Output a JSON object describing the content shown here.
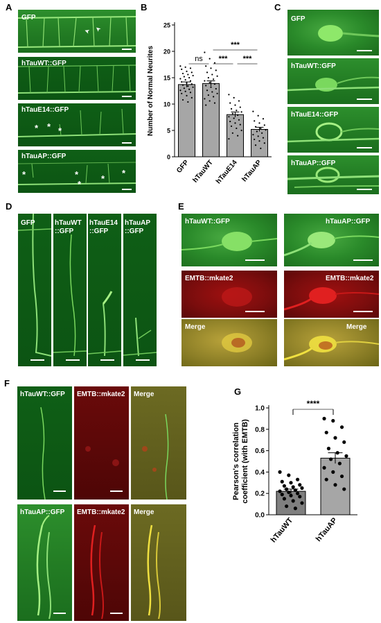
{
  "panels": {
    "A": {
      "label": "A",
      "images": [
        {
          "text": "GFP",
          "markers": [
            "➤",
            "➤"
          ]
        },
        {
          "text": "hTauWT::GFP"
        },
        {
          "text": "hTauE14::GFP",
          "markers": [
            "*",
            "*",
            "*"
          ]
        },
        {
          "text": "hTauAP::GFP",
          "markers": [
            "*",
            "*",
            "*",
            "*",
            "*"
          ]
        }
      ]
    },
    "B": {
      "label": "B",
      "significance": [
        "ns",
        "***",
        "***",
        "***"
      ]
    },
    "C": {
      "label": "C",
      "images": [
        {
          "text": "GFP"
        },
        {
          "text": "hTauWT::GFP"
        },
        {
          "text": "hTauE14::GFP"
        },
        {
          "text": "hTauAP::GFP"
        }
      ]
    },
    "D": {
      "label": "D",
      "images": [
        {
          "line1": "GFP",
          "line2": ""
        },
        {
          "line1": "hTauWT",
          "line2": "::GFP"
        },
        {
          "line1": "hTauE14",
          "line2": "::GFP"
        },
        {
          "line1": "hTauAP",
          "line2": "::GFP"
        }
      ]
    },
    "E": {
      "label": "E",
      "images": [
        {
          "text": "hTauWT::GFP"
        },
        {
          "text": "hTauAP::GFP"
        },
        {
          "text": "EMTB::mkate2"
        },
        {
          "text": "EMTB::mkate2"
        },
        {
          "text": "Merge"
        },
        {
          "text": "Merge"
        }
      ]
    },
    "F": {
      "label": "F",
      "images": [
        {
          "text": "hTauWT::GFP"
        },
        {
          "text": "EMTB::mkate2"
        },
        {
          "text": "Merge"
        },
        {
          "text": "hTauAP::GFP"
        },
        {
          "text": "EMTB::mkate2"
        },
        {
          "text": "Merge"
        }
      ]
    },
    "G": {
      "label": "G",
      "significance": "****"
    }
  },
  "chart_data": [
    {
      "type": "bar",
      "panel": "B",
      "categories": [
        "GFP",
        "hTauWT",
        "hTauE14",
        "hTauAP"
      ],
      "values": [
        13.7,
        13.9,
        8.0,
        5.2
      ],
      "errors": [
        0.5,
        0.5,
        0.5,
        0.4
      ],
      "ylabel": "Number of Normal Neurites",
      "ylim": [
        0,
        25
      ],
      "yticks": [
        0,
        5,
        10,
        15,
        20,
        25
      ],
      "bar_color": "#a6a6a6",
      "points": [
        [
          17.2,
          17.0,
          16.8,
          16.6,
          16.2,
          16.0,
          15.8,
          15.6,
          15.4,
          15.2,
          15.0,
          14.8,
          14.6,
          14.4,
          14.2,
          14.0,
          13.8,
          13.6,
          13.4,
          13.2,
          13.0,
          12.8,
          12.6,
          12.4,
          12.2,
          12.0,
          11.6,
          11.2,
          10.8,
          10.4
        ],
        [
          19.8,
          18.6,
          17.8,
          17.2,
          16.8,
          16.4,
          16.0,
          15.6,
          15.3,
          15.0,
          14.7,
          14.4,
          14.1,
          13.8,
          13.5,
          13.2,
          12.9,
          12.6,
          12.3,
          12.0,
          11.7,
          11.4,
          11.0,
          10.6,
          10.2,
          9.8
        ],
        [
          11.8,
          11.2,
          10.6,
          10.2,
          9.8,
          9.4,
          9.1,
          8.8,
          8.5,
          8.2,
          7.9,
          7.6,
          7.3,
          7.0,
          6.7,
          6.4,
          6.1,
          5.8,
          5.4,
          5.0,
          4.5,
          4.0,
          3.4
        ],
        [
          8.6,
          7.8,
          7.2,
          6.8,
          6.4,
          6.0,
          5.7,
          5.4,
          5.1,
          4.8,
          4.5,
          4.2,
          3.9,
          3.6,
          3.3,
          3.0,
          2.6,
          2.2,
          1.6
        ]
      ],
      "comparisons": [
        {
          "from": 0,
          "to": 1,
          "label": "ns"
        },
        {
          "from": 1,
          "to": 2,
          "label": "***"
        },
        {
          "from": 2,
          "to": 3,
          "label": "***"
        },
        {
          "from": 1,
          "to": 3,
          "label": "***"
        }
      ]
    },
    {
      "type": "bar",
      "panel": "G",
      "categories": [
        "hTauWT",
        "hTauAP"
      ],
      "values": [
        0.22,
        0.53
      ],
      "errors": [
        0.02,
        0.05
      ],
      "ylabel": "Pearson's correlation coefficient (with EMTB)",
      "ylabel_lines": [
        "Pearson's correlation",
        "coefficient (with EMTB)"
      ],
      "ylim": [
        0,
        1.0
      ],
      "yticks": [
        0.0,
        0.2,
        0.4,
        0.6,
        0.8,
        1.0
      ],
      "bar_colors": [
        "#7f7f7f",
        "#a6a6a6"
      ],
      "points": [
        [
          0.4,
          0.37,
          0.33,
          0.31,
          0.3,
          0.28,
          0.27,
          0.26,
          0.25,
          0.24,
          0.23,
          0.22,
          0.21,
          0.2,
          0.19,
          0.18,
          0.17,
          0.15,
          0.13,
          0.11,
          0.08,
          0.06
        ],
        [
          0.9,
          0.88,
          0.82,
          0.77,
          0.72,
          0.68,
          0.62,
          0.58,
          0.55,
          0.52,
          0.48,
          0.44,
          0.4,
          0.36,
          0.33,
          0.28,
          0.24
        ]
      ],
      "comparisons": [
        {
          "from": 0,
          "to": 1,
          "label": "****"
        }
      ]
    }
  ]
}
